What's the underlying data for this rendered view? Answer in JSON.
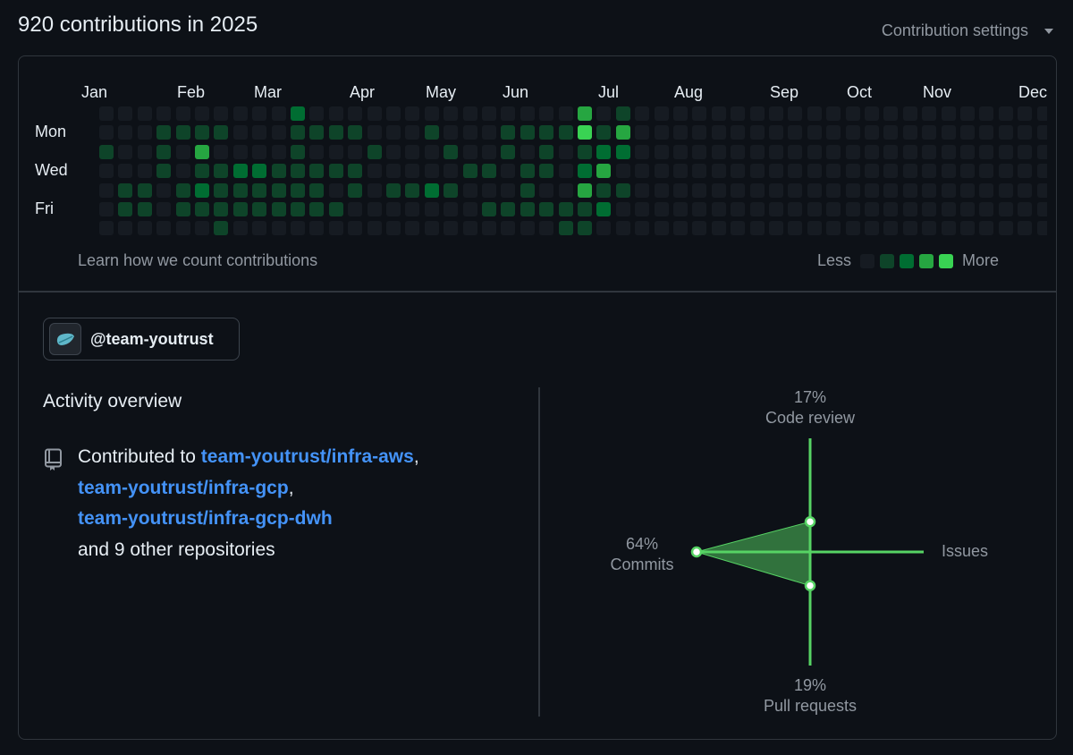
{
  "header": {
    "title": "920 contributions in 2025",
    "settings_label": "Contribution settings"
  },
  "calendar": {
    "months": [
      "Jan",
      "Feb",
      "Mar",
      "Apr",
      "May",
      "Jun",
      "Jul",
      "Aug",
      "Sep",
      "Oct",
      "Nov",
      "Dec"
    ],
    "day_labels": [
      "Mon",
      "Wed",
      "Fri"
    ],
    "learn_link": "Learn how we count contributions",
    "legend_less": "Less",
    "legend_more": "More",
    "colors": [
      "#161b22",
      "#0e4429",
      "#006d32",
      "#26a641",
      "#39d353"
    ],
    "weeks_shown": 50,
    "levels": [
      [
        0,
        0,
        1,
        0,
        0,
        0,
        0
      ],
      [
        0,
        0,
        0,
        0,
        1,
        1,
        0
      ],
      [
        0,
        0,
        0,
        0,
        1,
        1,
        0
      ],
      [
        0,
        1,
        1,
        1,
        0,
        0,
        0
      ],
      [
        0,
        1,
        0,
        0,
        1,
        1,
        0
      ],
      [
        0,
        1,
        3,
        1,
        2,
        1,
        0
      ],
      [
        0,
        1,
        0,
        1,
        1,
        1,
        1
      ],
      [
        0,
        0,
        0,
        2,
        1,
        1,
        0
      ],
      [
        0,
        0,
        0,
        2,
        1,
        1,
        0
      ],
      [
        0,
        0,
        0,
        1,
        1,
        1,
        0
      ],
      [
        2,
        1,
        1,
        1,
        1,
        1,
        0
      ],
      [
        0,
        1,
        0,
        1,
        1,
        1,
        0
      ],
      [
        0,
        1,
        0,
        1,
        0,
        1,
        0
      ],
      [
        0,
        1,
        0,
        1,
        1,
        0,
        0
      ],
      [
        0,
        0,
        1,
        0,
        0,
        0,
        0
      ],
      [
        0,
        0,
        0,
        0,
        1,
        0,
        0
      ],
      [
        0,
        0,
        0,
        0,
        1,
        0,
        0
      ],
      [
        0,
        1,
        0,
        0,
        2,
        0,
        0
      ],
      [
        0,
        0,
        1,
        0,
        1,
        0,
        0
      ],
      [
        0,
        0,
        0,
        1,
        0,
        0,
        0
      ],
      [
        0,
        0,
        0,
        1,
        0,
        1,
        0
      ],
      [
        0,
        1,
        1,
        0,
        0,
        1,
        0
      ],
      [
        0,
        1,
        0,
        1,
        1,
        1,
        0
      ],
      [
        0,
        1,
        1,
        1,
        0,
        1,
        0
      ],
      [
        0,
        1,
        0,
        0,
        0,
        1,
        1
      ],
      [
        3,
        4,
        1,
        2,
        3,
        1,
        1
      ],
      [
        0,
        1,
        2,
        3,
        1,
        2,
        0
      ],
      [
        1,
        3,
        2,
        0,
        1,
        0,
        0
      ],
      [
        0,
        0,
        0,
        0,
        0,
        0,
        0
      ],
      [
        0,
        0,
        0,
        0,
        0,
        0,
        0
      ],
      [
        0,
        0,
        0,
        0,
        0,
        0,
        0
      ],
      [
        0,
        0,
        0,
        0,
        0,
        0,
        0
      ],
      [
        0,
        0,
        0,
        0,
        0,
        0,
        0
      ],
      [
        0,
        0,
        0,
        0,
        0,
        0,
        0
      ],
      [
        0,
        0,
        0,
        0,
        0,
        0,
        0
      ],
      [
        0,
        0,
        0,
        0,
        0,
        0,
        0
      ],
      [
        0,
        0,
        0,
        0,
        0,
        0,
        0
      ],
      [
        0,
        0,
        0,
        0,
        0,
        0,
        0
      ],
      [
        0,
        0,
        0,
        0,
        0,
        0,
        0
      ],
      [
        0,
        0,
        0,
        0,
        0,
        0,
        0
      ],
      [
        0,
        0,
        0,
        0,
        0,
        0,
        0
      ],
      [
        0,
        0,
        0,
        0,
        0,
        0,
        0
      ],
      [
        0,
        0,
        0,
        0,
        0,
        0,
        0
      ],
      [
        0,
        0,
        0,
        0,
        0,
        0,
        0
      ],
      [
        0,
        0,
        0,
        0,
        0,
        0,
        0
      ],
      [
        0,
        0,
        0,
        0,
        0,
        0,
        0
      ],
      [
        0,
        0,
        0,
        0,
        0,
        0,
        0
      ],
      [
        0,
        0,
        0,
        0,
        0,
        0,
        0
      ],
      [
        0,
        0,
        0,
        0,
        0,
        0,
        0
      ],
      [
        0,
        0,
        0,
        0,
        0,
        0,
        0
      ]
    ]
  },
  "org": {
    "name": "@team-youtrust"
  },
  "activity": {
    "title": "Activity overview",
    "contributed_prefix": "Contributed to",
    "repos": [
      "team-youtrust/infra-aws",
      "team-youtrust/infra-gcp",
      "team-youtrust/infra-gcp-dwh"
    ],
    "sep1": ",",
    "sep2": ",",
    "others": "and 9 other repositories"
  },
  "radar": {
    "accent": "#56d364",
    "code_review_pct": "17%",
    "code_review_label": "Code review",
    "commits_pct": "64%",
    "commits_label": "Commits",
    "issues_label": "Issues",
    "pr_pct": "19%",
    "pr_label": "Pull requests",
    "values": {
      "code_review": 17,
      "commits": 64,
      "issues": 0,
      "pull_requests": 19
    }
  }
}
